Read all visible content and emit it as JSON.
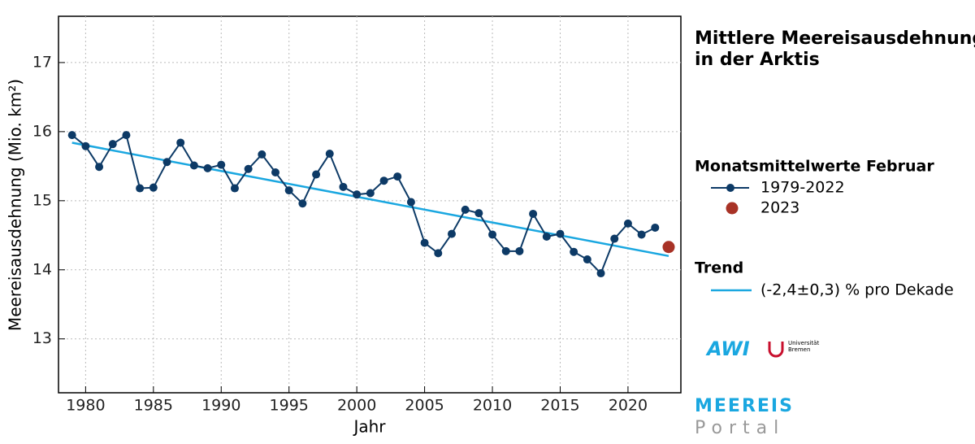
{
  "chart_data": {
    "type": "line",
    "title": [
      "Mittlere Meereisausdehnung",
      "in der Arktis"
    ],
    "x_label": "Jahr",
    "y_label": "Meereisausdehnung (Mio. km²)",
    "legend_title": "Monatsmittelwerte Februar",
    "trend_title": "Trend",
    "xlim": [
      1978,
      2023.9
    ],
    "ylim": [
      12.22,
      17.67
    ],
    "xticks": [
      1980,
      1985,
      1990,
      1995,
      2000,
      2005,
      2010,
      2015,
      2020
    ],
    "yticks": [
      13,
      14,
      15,
      16,
      17
    ],
    "grid": true,
    "x": [
      1979,
      1980,
      1981,
      1982,
      1983,
      1984,
      1985,
      1986,
      1987,
      1988,
      1989,
      1990,
      1991,
      1992,
      1993,
      1994,
      1995,
      1996,
      1997,
      1998,
      1999,
      2000,
      2001,
      2002,
      2003,
      2004,
      2005,
      2006,
      2007,
      2008,
      2009,
      2010,
      2011,
      2012,
      2013,
      2014,
      2015,
      2016,
      2017,
      2018,
      2019,
      2020,
      2021,
      2022
    ],
    "series": [
      {
        "name": "1979-2022",
        "color": "#0d3a66",
        "values": [
          15.95,
          15.79,
          15.49,
          15.82,
          15.95,
          15.18,
          15.19,
          15.56,
          15.84,
          15.51,
          15.47,
          15.52,
          15.18,
          15.46,
          15.67,
          15.41,
          15.15,
          14.96,
          15.38,
          15.68,
          15.2,
          15.09,
          15.11,
          15.29,
          15.35,
          14.98,
          14.39,
          14.24,
          14.52,
          14.87,
          14.82,
          14.51,
          14.27,
          14.27,
          14.81,
          14.48,
          14.52,
          14.26,
          14.15,
          13.95,
          14.45,
          14.67,
          14.51,
          14.61
        ]
      }
    ],
    "highlight": {
      "name": "2023",
      "x": 2023,
      "value": 14.33,
      "color": "#a83226"
    },
    "trend": {
      "name": "(-2,4±0,3) % pro Dekade",
      "x": [
        1979,
        2023
      ],
      "values": [
        15.84,
        14.2
      ],
      "color": "#1aa7e0"
    }
  },
  "branding": {
    "awi": "AWI",
    "university": [
      "Universität",
      "Bremen"
    ],
    "portal": [
      "MEEREIS",
      "Portal"
    ]
  }
}
